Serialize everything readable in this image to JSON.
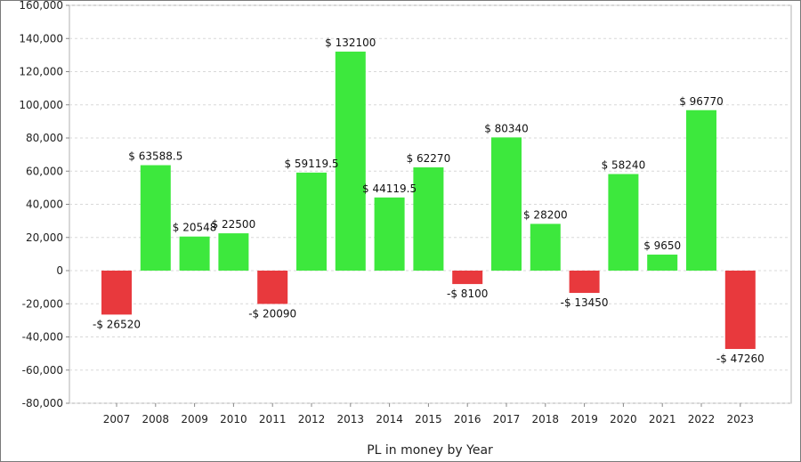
{
  "chart_data": {
    "type": "bar",
    "xlabel": "PL in money by Year",
    "ylabel": "",
    "ylim": [
      -80000,
      160000
    ],
    "yticks": [
      160000,
      140000,
      120000,
      100000,
      80000,
      60000,
      40000,
      20000,
      0,
      -20000,
      -40000,
      -60000,
      -80000
    ],
    "ytick_labels": [
      "160,000",
      "140,000",
      "120,000",
      "100,000",
      "80,000",
      "60,000",
      "40,000",
      "20,000",
      "0",
      "-20,000",
      "-40,000",
      "-60,000",
      "-80,000"
    ],
    "categories": [
      "2007",
      "2008",
      "2009",
      "2010",
      "2011",
      "2012",
      "2013",
      "2014",
      "2015",
      "2016",
      "2017",
      "2018",
      "2019",
      "2020",
      "2021",
      "2022",
      "2023"
    ],
    "values": [
      -26520,
      63588.5,
      20548,
      22500,
      -20090,
      59119.5,
      132100,
      44119.5,
      62270,
      -8100,
      80340,
      28200,
      -13450,
      58240,
      9650,
      96770,
      -47260
    ],
    "data_labels": [
      "-$ 26520",
      "$ 63588.5",
      "$ 20548",
      "$ 22500",
      "-$ 20090",
      "$ 59119.5",
      "$ 132100",
      "$ 44119.5",
      "$ 62270",
      "-$ 8100",
      "$ 80340",
      "$ 28200",
      "-$ 13450",
      "$ 58240",
      "$ 9650",
      "$ 96770",
      "-$ 47260"
    ],
    "grid": true,
    "positive_color": "#3de83d",
    "negative_color": "#e8393d",
    "gridline_color": "#d8d8d8"
  }
}
